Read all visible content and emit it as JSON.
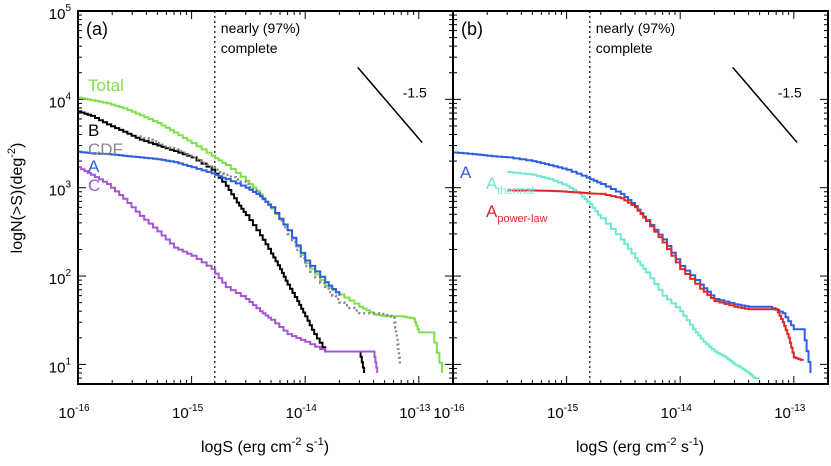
{
  "chart_data": {
    "type": "line",
    "ylabel": "logN(>S)(deg-2)",
    "ylabel_parts": {
      "main": "logN(>S)(deg",
      "sup": "-2",
      "close": ")"
    },
    "xlabel_parts": {
      "a": "logS (erg cm",
      "sup1": "-2",
      "b": " s",
      "sup2": "-1",
      "c": ")"
    },
    "xlim": [
      1e-16,
      2e-13
    ],
    "ylim": [
      6,
      100000
    ],
    "x_ticks": [
      {
        "v": 1e-16,
        "base": "10",
        "exp": "-16"
      },
      {
        "v": 1e-15,
        "base": "10",
        "exp": "-15"
      },
      {
        "v": 1e-14,
        "base": "10",
        "exp": "-14"
      },
      {
        "v": 1e-13,
        "base": "10",
        "exp": "-13"
      }
    ],
    "y_ticks": [
      {
        "v": 10,
        "base": "10",
        "exp": "1"
      },
      {
        "v": 100,
        "base": "10",
        "exp": "2"
      },
      {
        "v": 1000,
        "base": "10",
        "exp": "3"
      },
      {
        "v": 10000,
        "base": "10",
        "exp": "4"
      },
      {
        "v": 100000,
        "base": "10",
        "exp": "5"
      }
    ],
    "completeness_line_x": 1.6e-15,
    "completeness_text": [
      "nearly (97%)",
      "complete"
    ],
    "slope_label": "-1.5",
    "slope_segment": [
      [
        2.9e-14,
        23000
      ],
      [
        1.07e-13,
        3250
      ]
    ],
    "panels": [
      {
        "label": "(a)",
        "series": [
          {
            "name": "Total",
            "color": "#7fe04a",
            "style": "solid",
            "x": [
              1e-16,
              1.3e-16,
              1.8e-16,
              2.5e-16,
              3.5e-16,
              5e-16,
              7e-16,
              1e-15,
              1.5e-15,
              2e-15,
              3e-15,
              4e-15,
              5e-15,
              7e-15,
              1e-14,
              1.5e-14,
              2e-14,
              3e-14,
              4e-14,
              5e-14,
              7e-14,
              9e-14,
              1e-13,
              1.3e-13,
              1.6e-13
            ],
            "y": [
              10500,
              9800,
              9000,
              7900,
              6600,
              5400,
              4200,
              3200,
              2300,
              1800,
              1200,
              840,
              580,
              330,
              140,
              78,
              62,
              45,
              37,
              35,
              35,
              33,
              23,
              23,
              8
            ]
          },
          {
            "name": "B",
            "color": "#000000",
            "style": "solid",
            "x": [
              1e-16,
              1.3e-16,
              1.8e-16,
              2.5e-16,
              3.5e-16,
              5e-16,
              7e-16,
              1e-15,
              1.5e-15,
              2e-15,
              2.5e-15,
              3e-15,
              4e-15,
              5e-15,
              6e-15,
              7e-15,
              8.5e-15,
              1e-14,
              1.2e-14,
              1.5e-14,
              2e-14,
              2.5e-14,
              3e-14,
              3.3e-14
            ],
            "y": [
              7300,
              6500,
              5200,
              4300,
              3500,
              3000,
              2600,
              2200,
              1600,
              1050,
              680,
              490,
              290,
              180,
              120,
              80,
              52,
              35,
              22,
              14,
              14,
              14,
              14,
              8
            ]
          },
          {
            "name": "CDF",
            "color": "#888888",
            "style": "dotted",
            "x": [
              3.5e-16,
              5e-16,
              7e-16,
              1e-15,
              1.3e-15,
              1.6e-15,
              2e-15,
              3e-15,
              4e-15,
              5e-15,
              7e-15,
              1e-14,
              1.5e-14,
              2e-14,
              3e-14,
              4e-14,
              5e-14,
              6e-14,
              6.4e-14,
              6.8e-14
            ],
            "y": [
              3800,
              3200,
              2700,
              2300,
              1900,
              1600,
              1400,
              1100,
              800,
              600,
              300,
              130,
              72,
              50,
              38,
              38,
              37,
              34,
              20,
              10
            ]
          },
          {
            "name": "A",
            "color": "#2f5fe0",
            "style": "solid",
            "x": [
              1e-16,
              1.3e-16,
              1.8e-16,
              2.5e-16,
              3.5e-16,
              5e-16,
              7e-16,
              1e-15,
              1.5e-15,
              2e-15,
              3e-15,
              4e-15,
              5e-15,
              7e-15,
              1e-14,
              1.5e-14,
              2e-14
            ],
            "y": [
              2550,
              2450,
              2400,
              2300,
              2200,
              2100,
              1950,
              1700,
              1450,
              1250,
              1000,
              800,
              600,
              330,
              150,
              85,
              60
            ]
          },
          {
            "name": "C",
            "color": "#a855d8",
            "style": "solid",
            "x": [
              1e-16,
              1.3e-16,
              1.8e-16,
              2.5e-16,
              3.5e-16,
              5e-16,
              7e-16,
              1e-15,
              1.5e-15,
              2e-15,
              3e-15,
              4e-15,
              5e-15,
              7e-15,
              1e-14,
              1.5e-14,
              2e-14,
              3e-14,
              4e-14,
              4.3e-14
            ],
            "y": [
              1700,
              1400,
              1100,
              750,
              480,
              320,
              210,
              170,
              120,
              75,
              55,
              40,
              32,
              22,
              18,
              14,
              14,
              14,
              14,
              8
            ]
          }
        ],
        "labels": [
          {
            "text": "Total",
            "series": "Total",
            "lx": 88,
            "ly": 91
          },
          {
            "text": "B",
            "series": "B",
            "lx": 88,
            "ly": 136
          },
          {
            "text": "CDF",
            "series": "CDF",
            "lx": 88,
            "ly": 155
          },
          {
            "text": "A",
            "series": "A",
            "lx": 88,
            "ly": 172
          },
          {
            "text": "C",
            "series": "C",
            "lx": 88,
            "ly": 191
          }
        ]
      },
      {
        "label": "(b)",
        "series": [
          {
            "name": "A",
            "color": "#2f5fe0",
            "style": "solid",
            "x": [
              1e-16,
              1.5e-16,
              2e-16,
              3e-16,
              5e-16,
              7e-16,
              1e-15,
              1.5e-15,
              2e-15,
              3e-15,
              4e-15,
              5e-15,
              7e-15,
              1e-14,
              1.5e-14,
              2e-14,
              3e-14,
              4e-14,
              6e-14,
              8e-14,
              1e-13,
              1.2e-13,
              1.4e-13
            ],
            "y": [
              2500,
              2400,
              2300,
              2200,
              2000,
              1800,
              1600,
              1300,
              1100,
              850,
              620,
              430,
              260,
              130,
              80,
              55,
              48,
              45,
              45,
              38,
              25,
              25,
              8
            ]
          },
          {
            "name": "A_thermal",
            "color": "#6fe8d0",
            "style": "solid",
            "x": [
              3e-16,
              5e-16,
              7e-16,
              1e-15,
              1.3e-15,
              1.6e-15,
              2e-15,
              3e-15,
              4e-15,
              5e-15,
              7e-15,
              1e-14,
              1.3e-14,
              1.6e-14,
              2e-14,
              2.5e-14,
              3e-14,
              3.5e-14,
              4e-14,
              4.5e-14,
              5e-14
            ],
            "y": [
              1500,
              1400,
              1250,
              1050,
              850,
              650,
              450,
              260,
              160,
              110,
              60,
              40,
              25,
              18,
              14,
              12,
              10,
              9,
              8,
              7,
              7
            ]
          },
          {
            "name": "A_power-law",
            "color": "#e02828",
            "style": "solid",
            "x": [
              3e-16,
              5e-16,
              7e-16,
              1e-15,
              1.3e-15,
              1.6e-15,
              2e-15,
              3e-15,
              4e-15,
              5e-15,
              7e-15,
              1e-14,
              1.5e-14,
              2e-14,
              3e-14,
              4e-14,
              5e-14,
              7e-14,
              8e-14,
              9e-14,
              1e-13,
              1.2e-13
            ],
            "y": [
              930,
              930,
              920,
              900,
              880,
              860,
              850,
              760,
              600,
              420,
              240,
              120,
              72,
              52,
              45,
              42,
              42,
              42,
              30,
              20,
              12,
              11
            ]
          }
        ],
        "labels": [
          {
            "text": "A",
            "series": "A",
            "lx": 460,
            "ly": 178
          },
          {
            "text": "A",
            "sub": "thermal",
            "series": "A_thermal",
            "lx": 486,
            "ly": 189
          },
          {
            "text": "A",
            "sub": "power-law",
            "series": "A_power-law",
            "lx": 486,
            "ly": 217
          }
        ]
      }
    ]
  }
}
